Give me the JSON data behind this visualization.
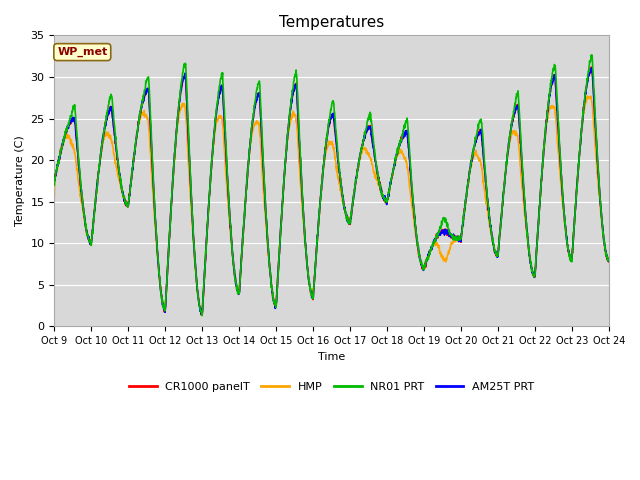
{
  "title": "Temperatures",
  "xlabel": "Time",
  "ylabel": "Temperature (C)",
  "annotation": "WP_met",
  "legend_labels": [
    "CR1000 panelT",
    "HMP",
    "NR01 PRT",
    "AM25T PRT"
  ],
  "legend_colors": [
    "#ff0000",
    "#ffa500",
    "#00bb00",
    "#0000ff"
  ],
  "ylim": [
    0,
    35
  ],
  "plot_bg_color": "#d8d8d8",
  "grid_color": "#ffffff",
  "x_tick_labels": [
    "Oct 9",
    "Oct 10",
    "Oct 11",
    "Oct 12",
    "Oct 13",
    "Oct 14",
    "Oct 15",
    "Oct 16",
    "Oct 17",
    "Oct 18",
    "Oct 19",
    "Oct 20",
    "Oct 21",
    "Oct 22",
    "Oct 23",
    "Oct 24"
  ],
  "x_tick_values": [
    0,
    1,
    2,
    3,
    4,
    5,
    6,
    7,
    8,
    9,
    10,
    11,
    12,
    13,
    14,
    15
  ],
  "xlim": [
    0,
    15
  ],
  "figsize": [
    6.4,
    4.8
  ],
  "dpi": 100,
  "line_width": 1.2,
  "font_size": 8
}
